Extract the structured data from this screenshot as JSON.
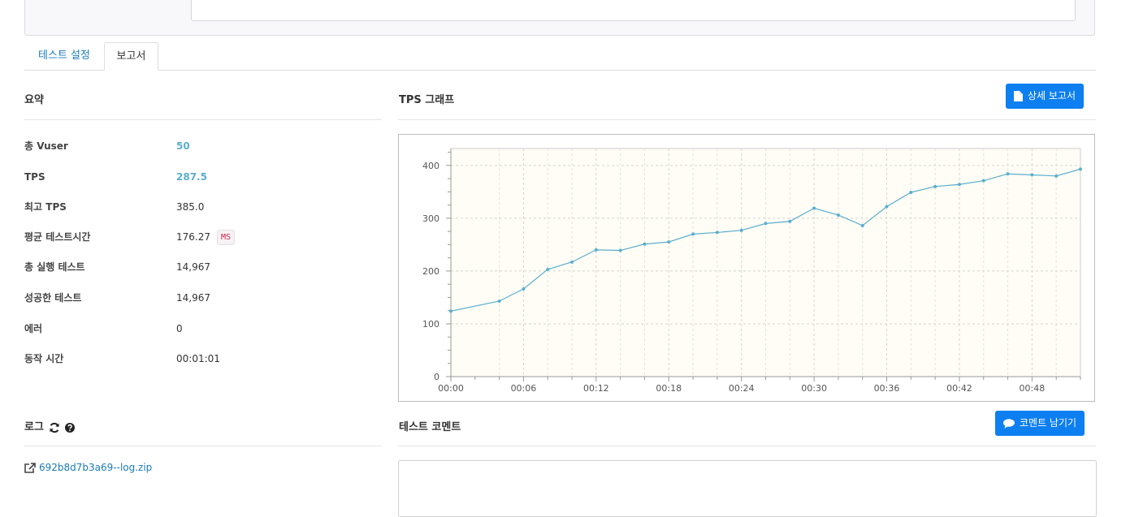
{
  "tabs": [
    {
      "label": "테스트 설정",
      "active": false
    },
    {
      "label": "보고서",
      "active": true
    }
  ],
  "summary": {
    "title": "요약",
    "rows": [
      {
        "label": "총 Vuser",
        "value": "50",
        "accent": true
      },
      {
        "label": "TPS",
        "value": "287.5",
        "accent": true
      },
      {
        "label": "최고 TPS",
        "value": "385.0",
        "accent": false
      },
      {
        "label": "평균 테스트시간",
        "value": "176.27",
        "unit": "MS",
        "accent": false
      },
      {
        "label": "총 실행 테스트",
        "value": "14,967",
        "accent": false
      },
      {
        "label": "성공한 테스트",
        "value": "14,967",
        "accent": false
      },
      {
        "label": "에러",
        "value": "0",
        "accent": false
      },
      {
        "label": "동작 시간",
        "value": "00:01:01",
        "accent": false
      }
    ]
  },
  "graph": {
    "title": "TPS 그래프",
    "detail_button_label": "상세 보고서",
    "detail_button_icon": "file-icon"
  },
  "log": {
    "title": "로그",
    "refresh_icon": "refresh-icon",
    "help_icon": "question-circle-icon",
    "file_name": "692b8d7b3a69--log.zip",
    "link_icon": "external-link-icon"
  },
  "comment": {
    "title": "테스트 코멘트",
    "button_label": "코멘트 남기기",
    "button_icon": "comment-icon"
  },
  "colors": {
    "accent": "#5aaed0",
    "primary_button": "#0d7ff0",
    "line": "#5aaed0",
    "plot_bg": "#fffdf5"
  },
  "chart_data": {
    "type": "line",
    "title": "",
    "xlabel": "",
    "ylabel": "",
    "x_ticks": [
      "00:00",
      "00:06",
      "00:12",
      "00:18",
      "00:24",
      "00:30",
      "00:36",
      "00:42",
      "00:48"
    ],
    "y_ticks": [
      0,
      100,
      200,
      300,
      400
    ],
    "xlim": [
      0,
      52
    ],
    "ylim": [
      0,
      432
    ],
    "grid": true,
    "series": [
      {
        "name": "",
        "x": [
          0,
          4,
          6,
          8,
          10,
          12,
          14,
          16,
          18,
          20,
          22,
          24,
          26,
          28,
          30,
          32,
          34,
          36,
          38,
          40,
          42,
          44,
          46,
          48,
          50,
          52
        ],
        "y": [
          124,
          143,
          166,
          203,
          217,
          240,
          239,
          251,
          255,
          270,
          273,
          277,
          290,
          294,
          319,
          306,
          286,
          322,
          349,
          360,
          364,
          371,
          384,
          382,
          380,
          393
        ]
      }
    ]
  }
}
